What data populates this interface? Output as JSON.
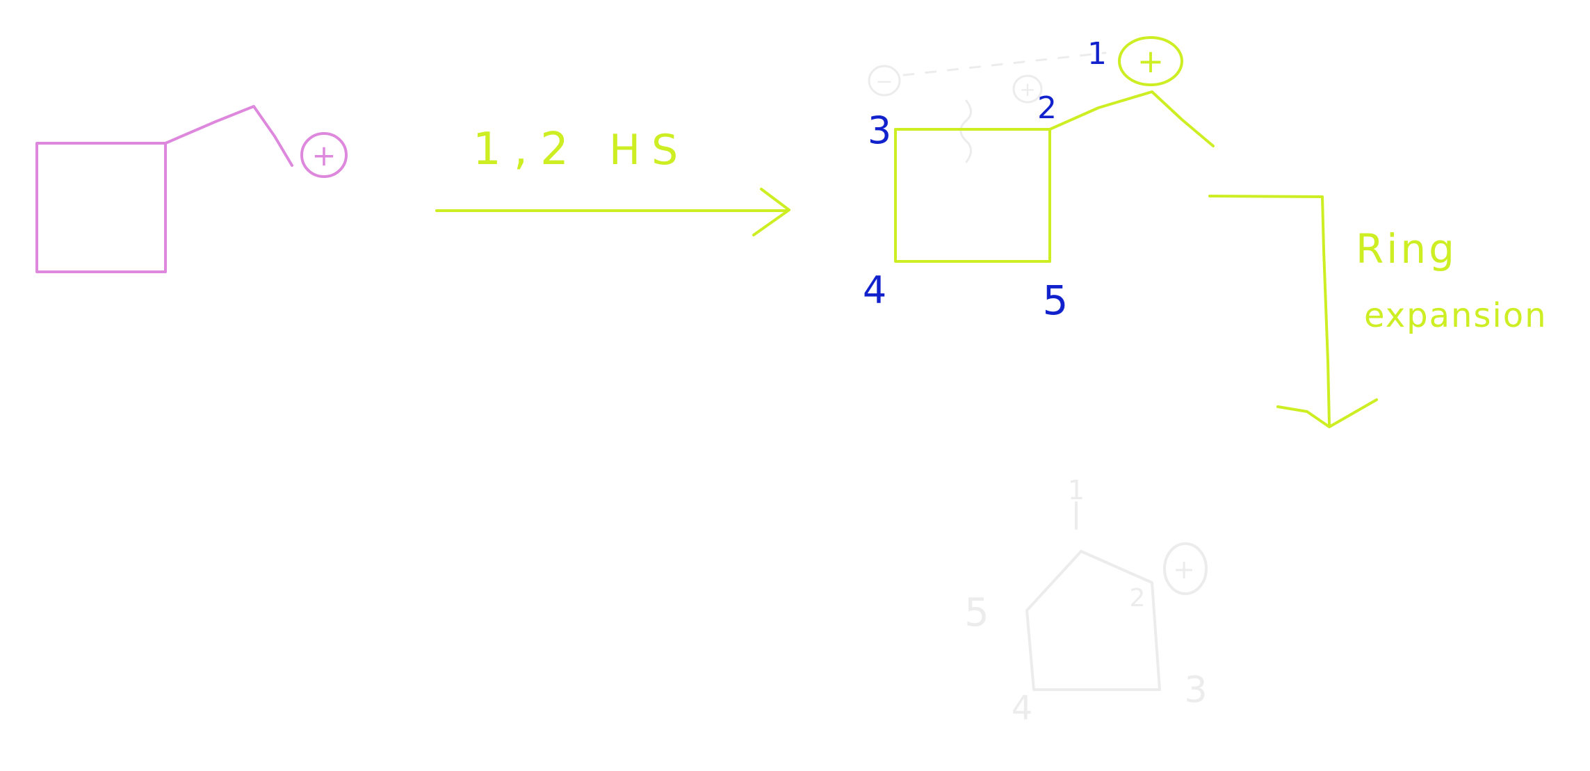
{
  "colors": {
    "pink": "#dd88dd",
    "lime": "#ccee22",
    "blue": "#1122cc",
    "faint": "#ececec"
  },
  "reactant": {
    "charge_label": "+"
  },
  "step1": {
    "label_numbers": "1,2",
    "label_letters": "HS"
  },
  "intermediate": {
    "charge_label": "+",
    "faint_minus": "−",
    "faint_plus": "+",
    "atom_labels": [
      "1",
      "2",
      "3",
      "4",
      "5"
    ]
  },
  "step2": {
    "label_line1": "Ring",
    "label_line2": "expansion"
  },
  "product": {
    "charge_label": "+",
    "atom_labels": [
      "1",
      "2",
      "3",
      "4",
      "5"
    ]
  }
}
